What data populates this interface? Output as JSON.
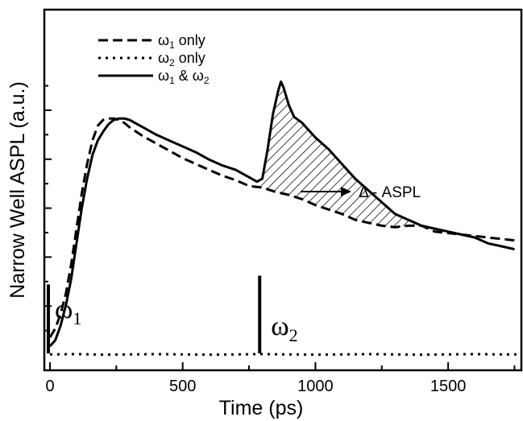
{
  "chart_data": {
    "type": "line",
    "xlabel": "Time (ps)",
    "ylabel": "Narrow Well ASPL (a.u.)",
    "xlim": [
      -20,
      1780
    ],
    "ylim": [
      0,
      1.0
    ],
    "xticks": [
      0,
      500,
      1000,
      1500
    ],
    "xtick_labels": [
      "0",
      "500",
      "1000",
      "1500"
    ],
    "y_tick_labels_shown": false,
    "grid": false,
    "legend": {
      "placement": "top-left",
      "entries": [
        {
          "sub": "1",
          "suffix": " only",
          "style": "dashed"
        },
        {
          "sub": "2",
          "suffix": " only",
          "style": "dotted"
        },
        {
          "sub": "1",
          "amp": " & ",
          "sub2": "2",
          "style": "solid"
        }
      ]
    },
    "series": [
      {
        "style": "dashed",
        "x": [
          0,
          20,
          40,
          60,
          80,
          100,
          120,
          140,
          160,
          180,
          200,
          220,
          240,
          260,
          280,
          300,
          350,
          400,
          450,
          500,
          550,
          600,
          650,
          700,
          750,
          800,
          850,
          900,
          950,
          1000,
          1050,
          1100,
          1150,
          1200,
          1250,
          1300,
          1350,
          1400,
          1450,
          1500,
          1550,
          1600,
          1650,
          1700,
          1750
        ],
        "values": [
          0.06,
          0.09,
          0.14,
          0.21,
          0.31,
          0.43,
          0.55,
          0.65,
          0.73,
          0.78,
          0.8,
          0.805,
          0.805,
          0.8,
          0.79,
          0.775,
          0.745,
          0.72,
          0.695,
          0.67,
          0.65,
          0.63,
          0.61,
          0.595,
          0.575,
          0.57,
          0.555,
          0.545,
          0.53,
          0.51,
          0.495,
          0.48,
          0.46,
          0.45,
          0.44,
          0.435,
          0.44,
          0.44,
          0.42,
          0.415,
          0.41,
          0.405,
          0.4,
          0.395,
          0.39
        ]
      },
      {
        "style": "dotted",
        "x": [
          0,
          100,
          200,
          300,
          400,
          500,
          600,
          700,
          800,
          900,
          1000,
          1100,
          1200,
          1300,
          1400,
          1500,
          1600,
          1700,
          1780
        ],
        "values": [
          0.002,
          0.003,
          0.001,
          0.002,
          0.003,
          0.002,
          0.001,
          0.002,
          0.003,
          0.002,
          0.001,
          0.002,
          0.003,
          0.002,
          0.001,
          0.002,
          0.003,
          0.002,
          0.002
        ]
      },
      {
        "style": "solid",
        "x": [
          0,
          20,
          40,
          60,
          80,
          100,
          120,
          140,
          160,
          180,
          200,
          220,
          240,
          260,
          280,
          300,
          350,
          400,
          450,
          500,
          550,
          600,
          650,
          700,
          750,
          780,
          800,
          820,
          840,
          860,
          870,
          880,
          900,
          920,
          950,
          1000,
          1050,
          1100,
          1150,
          1200,
          1250,
          1300,
          1350,
          1400,
          1450,
          1500,
          1550,
          1600,
          1650,
          1700,
          1750
        ],
        "values": [
          0.03,
          0.05,
          0.1,
          0.17,
          0.26,
          0.38,
          0.5,
          0.6,
          0.68,
          0.73,
          0.76,
          0.785,
          0.8,
          0.805,
          0.805,
          0.8,
          0.775,
          0.75,
          0.73,
          0.71,
          0.69,
          0.665,
          0.645,
          0.63,
          0.605,
          0.59,
          0.6,
          0.7,
          0.82,
          0.9,
          0.93,
          0.91,
          0.85,
          0.81,
          0.79,
          0.74,
          0.7,
          0.65,
          0.6,
          0.56,
          0.52,
          0.48,
          0.46,
          0.44,
          0.43,
          0.42,
          0.41,
          0.4,
          0.38,
          0.37,
          0.36
        ]
      }
    ],
    "annotations": {
      "shaded_label": "Δ - ASPL",
      "shaded_range": [
        790,
        1420
      ],
      "pulse_markers": [
        {
          "symbol": "ω",
          "sub": "1",
          "x": 0,
          "height": 0.24
        },
        {
          "symbol": "ω",
          "sub": "2",
          "x": 790,
          "height": 0.27
        }
      ]
    }
  }
}
